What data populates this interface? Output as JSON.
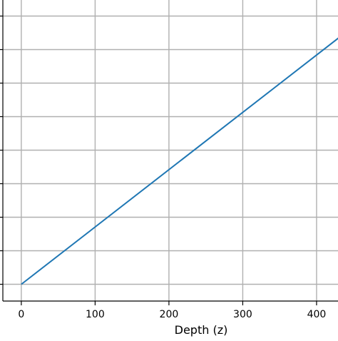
{
  "chart_data": {
    "type": "line",
    "title": "",
    "xlabel": "Depth (z)",
    "ylabel": "",
    "xlim": [
      -25,
      430
    ],
    "ylim": [
      -0.5,
      8.5
    ],
    "x_ticks": [
      0,
      100,
      200,
      300,
      400
    ],
    "x_tick_labels": [
      "0",
      "100",
      "200",
      "300",
      "400"
    ],
    "y_ticks": [
      0,
      1,
      2,
      3,
      4,
      5,
      6,
      7,
      8
    ],
    "y_tick_labels_visible": false,
    "grid": true,
    "legend": "none",
    "series": [
      {
        "x": [
          0,
          430
        ],
        "y": [
          0,
          7.35
        ],
        "color": "#1f77b4"
      }
    ],
    "colors": {
      "grid": "#b0b0b0",
      "axis": "#000000"
    }
  }
}
